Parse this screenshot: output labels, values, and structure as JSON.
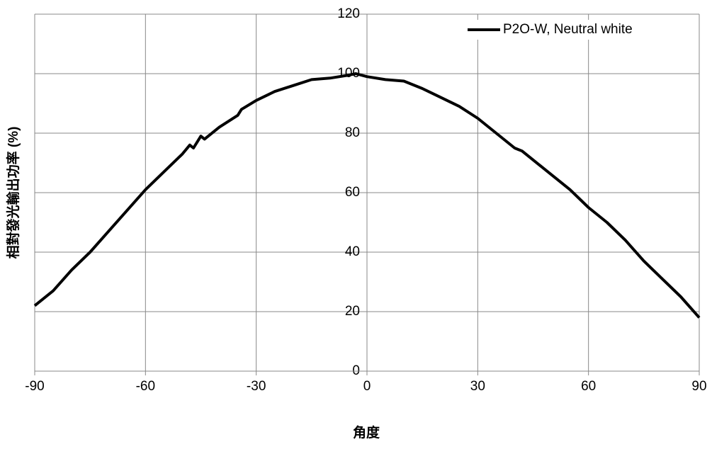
{
  "chart_data": {
    "type": "line",
    "x_label": "角度",
    "y_label": "相對發光輸出功率 (%)",
    "x": [
      -90,
      -85,
      -80,
      -75,
      -70,
      -65,
      -60,
      -55,
      -50,
      -48,
      -47,
      -45,
      -44,
      -40,
      -35,
      -34,
      -30,
      -25,
      -20,
      -15,
      -10,
      -5,
      -3,
      0,
      5,
      10,
      15,
      20,
      25,
      30,
      35,
      40,
      41,
      42,
      45,
      50,
      55,
      60,
      65,
      70,
      75,
      80,
      85,
      90
    ],
    "series": [
      {
        "name": "P2O-W, Neutral white",
        "color": "#000000",
        "values": [
          22,
          27,
          34,
          40,
          47,
          54,
          61,
          67,
          73,
          76,
          75,
          79,
          78,
          82,
          86,
          88,
          91,
          94,
          96,
          98,
          98.5,
          99.5,
          100,
          99,
          98,
          97.5,
          95,
          92,
          89,
          85,
          80,
          75,
          74.5,
          74,
          71,
          66,
          61,
          55,
          50,
          44,
          37,
          31,
          25,
          18
        ]
      }
    ],
    "xlim": [
      -90,
      90
    ],
    "xticks": [
      -90,
      -60,
      -30,
      0,
      30,
      60,
      90
    ],
    "ylim": [
      0,
      120
    ],
    "yticks": [
      0,
      20,
      40,
      60,
      80,
      100,
      120
    ],
    "grid": true,
    "legend": "upper right"
  }
}
